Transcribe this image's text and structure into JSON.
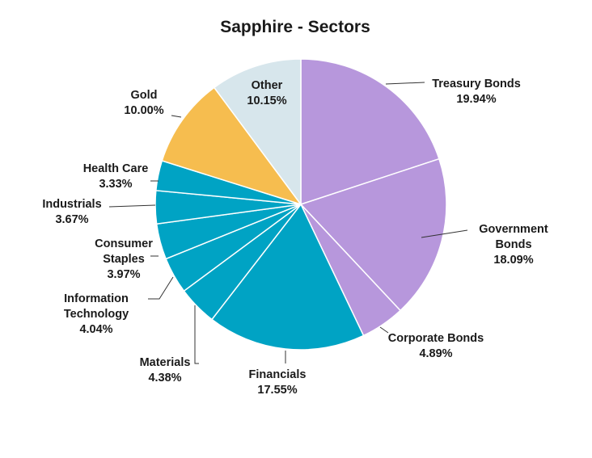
{
  "chart_data": {
    "type": "pie",
    "title": "Sapphire - Sectors",
    "slices": [
      {
        "label": [
          "Treasury Bonds"
        ],
        "value": 19.94,
        "value_label": "19.94%",
        "color": "#b797dc"
      },
      {
        "label": [
          "Government",
          "Bonds"
        ],
        "value": 18.09,
        "value_label": "18.09%",
        "color": "#b797dc"
      },
      {
        "label": [
          "Corporate Bonds"
        ],
        "value": 4.89,
        "value_label": "4.89%",
        "color": "#b797dc"
      },
      {
        "label": [
          "Financials"
        ],
        "value": 17.55,
        "value_label": "17.55%",
        "color": "#00a3c4"
      },
      {
        "label": [
          "Materials"
        ],
        "value": 4.38,
        "value_label": "4.38%",
        "color": "#00a3c4"
      },
      {
        "label": [
          "Information",
          "Technology"
        ],
        "value": 4.04,
        "value_label": "4.04%",
        "color": "#00a3c4"
      },
      {
        "label": [
          "Consumer",
          "Staples"
        ],
        "value": 3.97,
        "value_label": "3.97%",
        "color": "#00a3c4"
      },
      {
        "label": [
          "Industrials"
        ],
        "value": 3.67,
        "value_label": "3.67%",
        "color": "#00a3c4"
      },
      {
        "label": [
          "Health Care"
        ],
        "value": 3.33,
        "value_label": "3.33%",
        "color": "#00a3c4"
      },
      {
        "label": [
          "Gold"
        ],
        "value": 10.0,
        "value_label": "10.00%",
        "color": "#f6bd4f"
      },
      {
        "label": [
          "Other"
        ],
        "value": 10.15,
        "value_label": "10.15%",
        "color": "#d7e6ec"
      }
    ]
  }
}
